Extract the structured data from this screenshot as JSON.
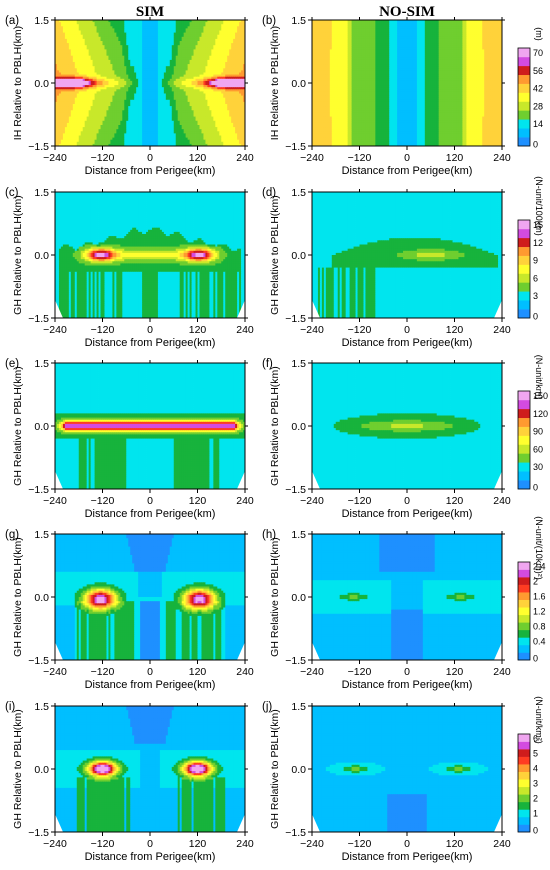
{
  "headers": {
    "left": "SIM",
    "right": "NO-SIM"
  },
  "chart_data": [
    {
      "type": "heatmap",
      "panel": "(a)",
      "style": "sim_ih",
      "xlabel": "Distance from Perigee(km)",
      "ylabel": "IH Relative to PBLH(km)",
      "xlim": [
        -240,
        240
      ],
      "ylim": [
        -1.5,
        1.5
      ],
      "xticks": [
        -240,
        -120,
        0,
        120,
        240
      ],
      "yticks": [
        -1.5,
        0.0,
        1.5
      ],
      "colorbar": {
        "label": "(m)",
        "levels": [
          0,
          14,
          28,
          42,
          56,
          70
        ],
        "colors": [
          "#1e90ff",
          "#00bfff",
          "#00e5ee",
          "#17b33c",
          "#6fce2f",
          "#c8e82a",
          "#ffff2e",
          "#ffd23a",
          "#ff9a30",
          "#ff3c22",
          "#cf1c1c",
          "#d34be0",
          "#f0a6f0"
        ]
      }
    },
    {
      "type": "heatmap",
      "panel": "(b)",
      "style": "nosim_ih",
      "xlabel": "Distance from Perigee(km)",
      "ylabel": "IH Relative to PBLH(km)",
      "xlim": [
        -240,
        240
      ],
      "ylim": [
        -1.5,
        1.5
      ],
      "xticks": [
        -240,
        -120,
        0,
        120,
        240
      ],
      "yticks": [
        -1.5,
        0.0,
        1.5
      ]
    },
    {
      "type": "heatmap",
      "panel": "(c)",
      "style": "sim_band",
      "peak": 16,
      "xlabel": "Distance from Perigee(km)",
      "ylabel": "GH Relative to PBLH(km)",
      "xlim": [
        -240,
        240
      ],
      "ylim": [
        -1.5,
        1.5
      ],
      "xticks": [
        -240,
        -120,
        0,
        120,
        240
      ],
      "yticks": [
        -1.5,
        0.0,
        1.5
      ],
      "colorbar": {
        "label": "(N-unit/100km)",
        "levels": [
          0,
          3,
          6,
          9,
          12,
          15
        ],
        "colors": [
          "#1e90ff",
          "#00bfff",
          "#00e5ee",
          "#17b33c",
          "#6fce2f",
          "#c8e82a",
          "#ffff2e",
          "#ffd23a",
          "#ff9a30",
          "#ff3c22",
          "#cf1c1c",
          "#d34be0",
          "#f0a6f0"
        ]
      }
    },
    {
      "type": "heatmap",
      "panel": "(d)",
      "style": "nosim_band",
      "peak": 9,
      "xlabel": "Distance from Perigee(km)",
      "ylabel": "GH Relative to PBLH(km)",
      "xlim": [
        -240,
        240
      ],
      "ylim": [
        -1.5,
        1.5
      ],
      "xticks": [
        -240,
        -120,
        0,
        120,
        240
      ],
      "yticks": [
        -1.5,
        0.0,
        1.5
      ]
    },
    {
      "type": "heatmap",
      "panel": "(e)",
      "style": "sim_line",
      "peak": 160,
      "xlabel": "Distance from Perigee(km)",
      "ylabel": "GH Relative to PBLH(km)",
      "xlim": [
        -240,
        240
      ],
      "ylim": [
        -1.5,
        1.5
      ],
      "xticks": [
        -240,
        -120,
        0,
        120,
        240
      ],
      "yticks": [
        -1.5,
        0.0,
        1.5
      ],
      "colorbar": {
        "label": "(N-unit/km)",
        "levels": [
          0,
          30,
          60,
          90,
          120,
          150
        ],
        "colors": [
          "#1e90ff",
          "#00bfff",
          "#00e5ee",
          "#17b33c",
          "#6fce2f",
          "#c8e82a",
          "#ffff2e",
          "#ffd23a",
          "#ff9a30",
          "#ff3c22",
          "#cf1c1c",
          "#d34be0",
          "#f0a6f0"
        ]
      }
    },
    {
      "type": "heatmap",
      "panel": "(f)",
      "style": "nosim_line",
      "peak": 75,
      "xlabel": "Distance from Perigee(km)",
      "ylabel": "GH Relative to PBLH(km)",
      "xlim": [
        -240,
        240
      ],
      "ylim": [
        -1.5,
        1.5
      ],
      "xticks": [
        -240,
        -120,
        0,
        120,
        240
      ],
      "yticks": [
        -1.5,
        0.0,
        1.5
      ]
    },
    {
      "type": "heatmap",
      "panel": "(g)",
      "style": "sim_blob",
      "peak": 2.3,
      "xlabel": "Distance from Perigee(km)",
      "ylabel": "GH Relative to PBLH(km)",
      "xlim": [
        -240,
        240
      ],
      "ylim": [
        -1.5,
        1.5
      ],
      "xticks": [
        -240,
        -120,
        0,
        120,
        240
      ],
      "yticks": [
        -1.5,
        0.0,
        1.5
      ],
      "colorbar": {
        "label": "(N-unit/(10km)²)",
        "levels": [
          0.0,
          0.4,
          0.8,
          1.2,
          1.6,
          2.0,
          2.4
        ],
        "colors": [
          "#1e90ff",
          "#00bfff",
          "#00e5ee",
          "#17b33c",
          "#6fce2f",
          "#c8e82a",
          "#ffff2e",
          "#ffd23a",
          "#ff9a30",
          "#ff3c22",
          "#cf1c1c",
          "#d34be0",
          "#f0a6f0"
        ]
      }
    },
    {
      "type": "heatmap",
      "panel": "(h)",
      "style": "nosim_blob",
      "peak": 0.9,
      "xlabel": "Distance from Perigee(km)",
      "ylabel": "GH Relative to PBLH(km)",
      "xlim": [
        -240,
        240
      ],
      "ylim": [
        -1.5,
        1.5
      ],
      "xticks": [
        -240,
        -120,
        0,
        120,
        240
      ],
      "yticks": [
        -1.5,
        0.0,
        1.5
      ]
    },
    {
      "type": "heatmap",
      "panel": "(i)",
      "style": "sim_blob2",
      "peak": 6.6,
      "xlabel": "Distance from Perigee(km)",
      "ylabel": "GH Relative to PBLH(km)",
      "xlim": [
        -240,
        240
      ],
      "ylim": [
        -1.5,
        1.5
      ],
      "xticks": [
        -240,
        -120,
        0,
        120,
        240
      ],
      "yticks": [
        -1.5,
        0.0,
        1.5
      ],
      "colorbar": {
        "label": "(N-unit/km²)",
        "levels": [
          0,
          1,
          2,
          3,
          4,
          5,
          6
        ],
        "colors": [
          "#1e90ff",
          "#00bfff",
          "#00e5ee",
          "#17b33c",
          "#6fce2f",
          "#c8e82a",
          "#ffff2e",
          "#ffd23a",
          "#ff9a30",
          "#ff3c22",
          "#cf1c1c",
          "#d34be0",
          "#f0a6f0"
        ]
      }
    },
    {
      "type": "heatmap",
      "panel": "(j)",
      "style": "nosim_blob2",
      "peak": 2.4,
      "xlabel": "Distance from Perigee(km)",
      "ylabel": "GH Relative to PBLH(km)",
      "xlim": [
        -240,
        240
      ],
      "ylim": [
        -1.5,
        1.5
      ],
      "xticks": [
        -240,
        -120,
        0,
        120,
        240
      ],
      "yticks": [
        -1.5,
        0.0,
        1.5
      ]
    }
  ]
}
